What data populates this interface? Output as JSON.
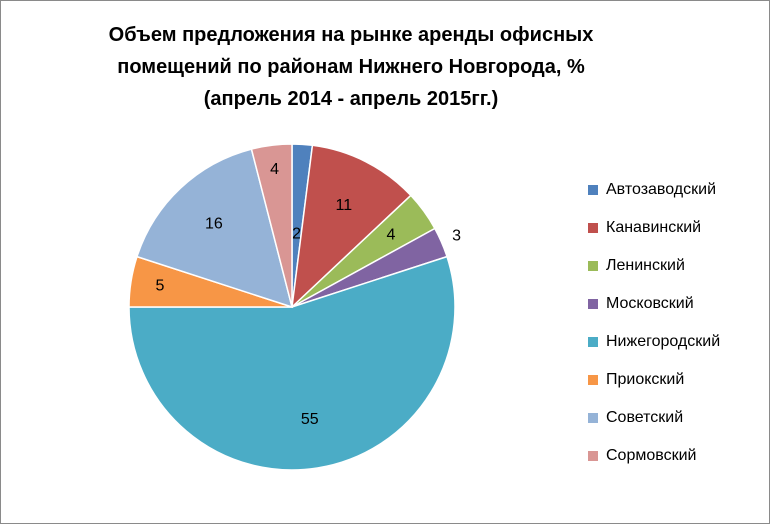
{
  "chart_data": {
    "type": "pie",
    "title_lines": [
      "Объем предложения на рынке аренды офисных",
      "помещений  по районам Нижнего Новгорода, %",
      "(апрель 2014 - апрель 2015гг.)"
    ],
    "slices": [
      {
        "name": "Автозаводский",
        "value": 2,
        "label": "2",
        "color": "#4F81BD"
      },
      {
        "name": "Канавинский",
        "value": 11,
        "label": "11",
        "color": "#C0504D"
      },
      {
        "name": "Ленинский",
        "value": 4,
        "label": "4",
        "color": "#9BBB59"
      },
      {
        "name": "Московский",
        "value": 3,
        "label": "3",
        "color": "#8064A2"
      },
      {
        "name": "Нижегородский",
        "value": 55,
        "label": "55",
        "color": "#4BACC6"
      },
      {
        "name": "Приокский",
        "value": 5,
        "label": "5",
        "color": "#F79646"
      },
      {
        "name": "Советский",
        "value": 16,
        "label": "16",
        "color": "#95B3D7"
      },
      {
        "name": "Сормовский",
        "value": 4,
        "label": "4",
        "color": "#D99694"
      }
    ],
    "legend_position": "right"
  }
}
